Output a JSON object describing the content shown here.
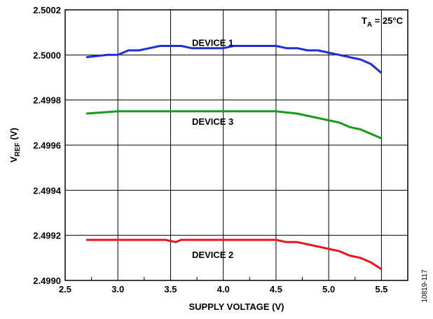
{
  "chart_data": {
    "type": "line",
    "xlabel": "SUPPLY VOLTAGE (V)",
    "ylabel_main": "V",
    "ylabel_sub": "REF",
    "ylabel_unit": " (V)",
    "xlim": [
      2.5,
      5.75
    ],
    "ylim": [
      2.499,
      2.5002
    ],
    "x_ticks": [
      2.5,
      3.0,
      3.5,
      4.0,
      4.5,
      5.0,
      5.5
    ],
    "x_tick_labels": [
      "2.5",
      "3.0",
      "3.5",
      "4.0",
      "4.5",
      "5.0",
      "5.5"
    ],
    "y_ticks": [
      2.499,
      2.4992,
      2.4994,
      2.4996,
      2.4998,
      2.5,
      2.5002
    ],
    "y_tick_labels": [
      "2.4990",
      "2.4992",
      "2.4994",
      "2.4996",
      "2.4998",
      "2.5000",
      "2.5002"
    ],
    "x_minor_ticks": [
      2.75,
      3.25,
      3.75,
      4.25,
      4.75,
      5.25
    ],
    "grid": true,
    "annotation": {
      "main": "T",
      "sub": "A",
      "rest": " = 25°C"
    },
    "series": [
      {
        "name": "DEVICE 1",
        "color": "#1f2fd6",
        "label_at": [
          3.9,
          2.50004
        ],
        "x": [
          2.7,
          2.9,
          3.0,
          3.1,
          3.2,
          3.3,
          3.4,
          3.5,
          3.6,
          3.7,
          3.8,
          3.9,
          4.0,
          4.1,
          4.2,
          4.3,
          4.4,
          4.5,
          4.6,
          4.7,
          4.8,
          4.9,
          5.0,
          5.1,
          5.2,
          5.3,
          5.4,
          5.5
        ],
        "values": [
          2.49999,
          2.5,
          2.5,
          2.50002,
          2.50002,
          2.50003,
          2.50004,
          2.50004,
          2.50004,
          2.50003,
          2.50003,
          2.50003,
          2.50003,
          2.50004,
          2.50004,
          2.50004,
          2.50004,
          2.50004,
          2.50003,
          2.50003,
          2.50002,
          2.50002,
          2.50001,
          2.5,
          2.49999,
          2.49998,
          2.49996,
          2.49992
        ]
      },
      {
        "name": "DEVICE 3",
        "color": "#1a9a1a",
        "label_at": [
          3.9,
          2.49969
        ],
        "x": [
          2.7,
          3.0,
          3.5,
          4.0,
          4.3,
          4.5,
          4.7,
          4.9,
          5.0,
          5.1,
          5.2,
          5.3,
          5.4,
          5.5
        ],
        "values": [
          2.49974,
          2.49975,
          2.49975,
          2.49975,
          2.49975,
          2.49975,
          2.49974,
          2.49972,
          2.49971,
          2.4997,
          2.49968,
          2.49967,
          2.49965,
          2.49963
        ]
      },
      {
        "name": "DEVICE 2",
        "color": "#e8161d",
        "label_at": [
          3.9,
          2.4991
        ],
        "x": [
          2.7,
          3.0,
          3.3,
          3.45,
          3.55,
          3.6,
          3.8,
          4.0,
          4.2,
          4.4,
          4.5,
          4.6,
          4.7,
          4.8,
          4.9,
          5.0,
          5.1,
          5.2,
          5.3,
          5.4,
          5.5
        ],
        "values": [
          2.49918,
          2.49918,
          2.49918,
          2.49918,
          2.49917,
          2.49918,
          2.49918,
          2.49918,
          2.49918,
          2.49918,
          2.49918,
          2.49917,
          2.49917,
          2.49916,
          2.49915,
          2.49914,
          2.49913,
          2.49911,
          2.4991,
          2.49908,
          2.49905
        ]
      }
    ]
  },
  "figure_id": "10819-117"
}
